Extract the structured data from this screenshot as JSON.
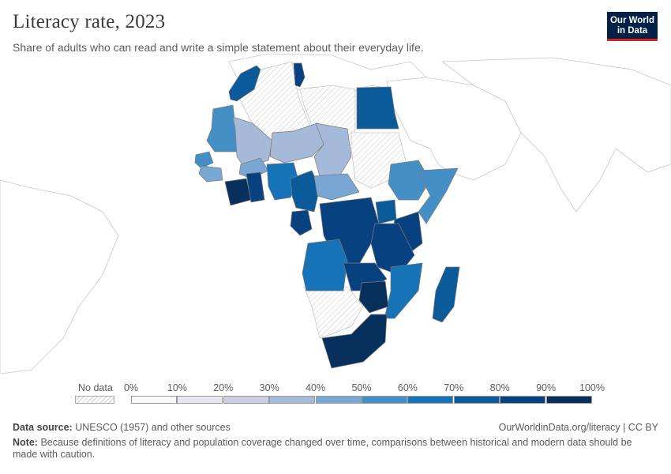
{
  "header": {
    "title": "Literacy rate, 2023",
    "subtitle": "Share of adults who can read and write a simple statement about their everyday life.",
    "logo_line1": "Our World",
    "logo_line2": "in Data"
  },
  "legend": {
    "no_data_label": "No data",
    "ticks": [
      "0%",
      "10%",
      "20%",
      "30%",
      "40%",
      "50%",
      "60%",
      "70%",
      "80%",
      "90%",
      "100%"
    ],
    "bin_colors": [
      "#fcf9fd",
      "#e8e6f2",
      "#cccfe4",
      "#a5b9d9",
      "#77a7d2",
      "#448fc5",
      "#1773b7",
      "#0b5a9a",
      "#084180",
      "#08305c"
    ]
  },
  "map": {
    "ocean": "#ffffff",
    "no_data_color": "#dedede",
    "regions": [
      {
        "name": "Morocco",
        "value": 76
      },
      {
        "name": "Tunisia",
        "value": 83
      },
      {
        "name": "Egypt",
        "value": 75
      },
      {
        "name": "Mauritania",
        "value": 53
      },
      {
        "name": "Mali",
        "value": 32
      },
      {
        "name": "Niger",
        "value": 35
      },
      {
        "name": "Chad",
        "value": 30
      },
      {
        "name": "Senegal",
        "value": 57
      },
      {
        "name": "Guinea",
        "value": 40
      },
      {
        "name": "Burkina Faso",
        "value": 46
      },
      {
        "name": "Ivory Coast",
        "value": 90
      },
      {
        "name": "Ghana",
        "value": 80
      },
      {
        "name": "Nigeria",
        "value": 62
      },
      {
        "name": "Cameroon",
        "value": 78
      },
      {
        "name": "Central African Republic",
        "value": 40
      },
      {
        "name": "Ethiopia",
        "value": 52
      },
      {
        "name": "Somalia",
        "value": 55
      },
      {
        "name": "Gabon",
        "value": 85
      },
      {
        "name": "Democratic Republic of Congo",
        "value": 80
      },
      {
        "name": "Uganda",
        "value": 78
      },
      {
        "name": "Kenya",
        "value": 83
      },
      {
        "name": "Tanzania",
        "value": 82
      },
      {
        "name": "Angola",
        "value": 68
      },
      {
        "name": "Zambia",
        "value": 87
      },
      {
        "name": "Mozambique",
        "value": 63
      },
      {
        "name": "Zimbabwe",
        "value": 93
      },
      {
        "name": "Madagascar",
        "value": 77
      },
      {
        "name": "South Africa",
        "value": 90
      }
    ]
  },
  "footer": {
    "source_label": "Data source:",
    "source_text": "UNESCO (1957) and other sources",
    "link_text": "OurWorldinData.org/literacy | CC BY",
    "note_label": "Note:",
    "note_text": "Because definitions of literacy and population coverage changed over time, comparisons between historical and modern data should be made with caution."
  }
}
